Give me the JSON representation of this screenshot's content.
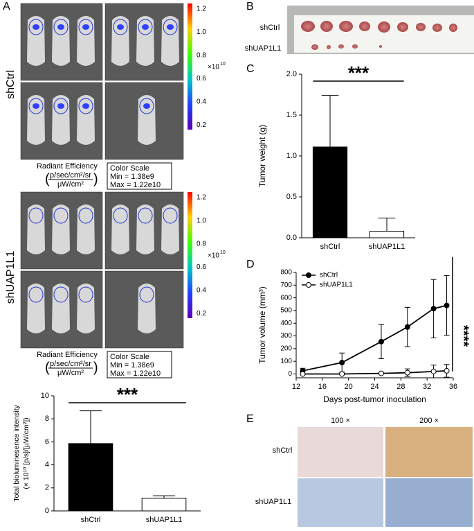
{
  "panels": {
    "a": "A",
    "b": "B",
    "c": "C",
    "d": "D",
    "e": "E"
  },
  "panel_a": {
    "groups": [
      "shCtrl",
      "shUAP1L1"
    ],
    "radiant_efficiency": "Radiant Efficiency",
    "unit_num": "p/sec/cm²/sr",
    "unit_den": "μW/cm²",
    "color_scale": "Color Scale",
    "min": "Min = 1.38e9",
    "max": "Max = 1.22e10",
    "colorbar_ticks": [
      "1.2",
      "1.0",
      "0.8",
      "0.6",
      "0.4",
      "0.2"
    ],
    "colorbar_base": "×10",
    "colorbar_exponent": "10"
  },
  "panel_b": {
    "labels": [
      "shCtrl",
      "shUAP1L1"
    ]
  },
  "panel_e": {
    "columns": [
      "100 ×",
      "200 ×"
    ],
    "rows": [
      "shCtrl",
      "shUAP1L1"
    ]
  },
  "chart_data": [
    {
      "type": "bar",
      "ylabel": "Total bioluminesence intensity",
      "ylabel2": "(× 10¹⁰ [p/s]/[µW/cm²])",
      "categories": [
        "shCtrl",
        "shUAP1L1"
      ],
      "values": [
        5.85,
        1.1
      ],
      "errors": [
        2.85,
        0.22
      ],
      "colors": [
        "#000000",
        "#ffffff"
      ],
      "significance": "***",
      "ylim": [
        0,
        10
      ],
      "yticks": [
        0,
        2,
        4,
        6,
        8,
        10
      ]
    },
    {
      "type": "bar",
      "ylabel": "Tumor weight (g)",
      "categories": [
        "shCtrl",
        "shUAP1L1"
      ],
      "values": [
        1.11,
        0.08
      ],
      "errors": [
        0.63,
        0.16
      ],
      "colors": [
        "#000000",
        "#ffffff"
      ],
      "significance": "***",
      "ylim": [
        0,
        2
      ],
      "yticks": [
        {
          "value": 0,
          "label": "0.0"
        },
        0.5,
        {
          "value": 1,
          "label": "1.0"
        },
        1.5,
        {
          "value": 2,
          "label": "2.0"
        }
      ]
    },
    {
      "type": "line",
      "xlabel": "Days post-tumor inoculation",
      "ylabel": "Tumor volume (mm³)",
      "x": [
        13,
        19,
        25,
        29,
        33,
        35
      ],
      "series": [
        {
          "name": "shCtrl",
          "color": "#000000",
          "values": [
            25,
            90,
            255,
            370,
            515,
            540
          ],
          "errors": [
            20,
            75,
            135,
            155,
            230,
            235
          ]
        },
        {
          "name": "shUAP1L1",
          "color": "#ffffff",
          "values": [
            0,
            0,
            5,
            10,
            20,
            25
          ],
          "errors": [
            5,
            5,
            5,
            30,
            50,
            50
          ]
        }
      ],
      "significance": "****",
      "xlim": [
        12,
        36
      ],
      "xticks": [
        12,
        16,
        20,
        24,
        28,
        32,
        36
      ],
      "ylim": [
        -30,
        800
      ],
      "yticks": [
        0,
        100,
        200,
        300,
        400,
        500,
        600,
        700,
        800
      ]
    }
  ]
}
